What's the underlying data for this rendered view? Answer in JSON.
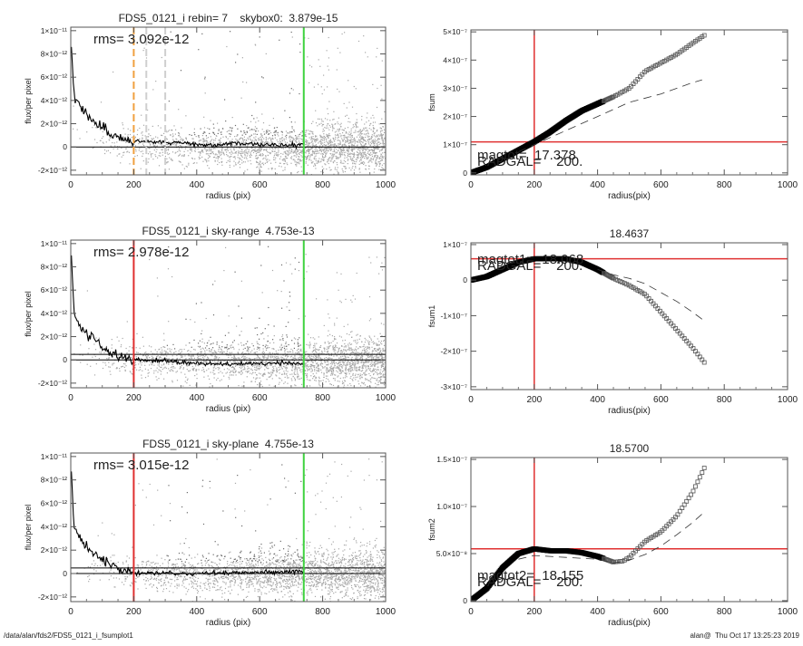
{
  "footer": {
    "path": "/data/alan/fds2/FDS5_0121_i_fsumplot1",
    "stamp": "alan@  Thu Oct 17 13:25:23 2019"
  },
  "colors": {
    "scatter_light": "#a8a8a8",
    "scatter_dark": "#6a6a6a",
    "profile": "#000000",
    "green": "#3fd23f",
    "red": "#e03030",
    "orange": "#f0a040"
  },
  "chart_data": [
    {
      "type": "scatter",
      "title": "FDS5_0121_i rebin= 7    skybox0:  3.879e-15",
      "annotation": "rms= 3.092e-12",
      "xlabel": "radius (pix)",
      "ylabel": "flux/per pixel",
      "xlim": [
        0,
        1000
      ],
      "ylim": [
        -2.4e-12,
        1.03e-11
      ],
      "xticks": [
        "0",
        "200",
        "400",
        "600",
        "800",
        "1000"
      ],
      "yticks": [
        {
          "v": -2e-12,
          "label": "-2×10⁻¹²"
        },
        {
          "v": 0,
          "label": "0"
        },
        {
          "v": 2e-12,
          "label": "2×10⁻¹²"
        },
        {
          "v": 4e-12,
          "label": "4×10⁻¹²"
        },
        {
          "v": 6e-12,
          "label": "6×10⁻¹²"
        },
        {
          "v": 8e-12,
          "label": "8×10⁻¹²"
        },
        {
          "v": 1e-11,
          "label": "1×10⁻¹¹"
        }
      ],
      "profile": {
        "x": [
          0,
          10,
          30,
          60,
          100,
          150,
          200,
          250,
          300,
          400,
          450,
          500,
          600,
          700,
          740
        ],
        "y": [
          1e-11,
          4.5e-12,
          3.5e-12,
          2.4e-12,
          1.6e-12,
          9e-13,
          5e-13,
          4.5e-13,
          4.5e-13,
          2.5e-13,
          1e-13,
          3e-13,
          2e-13,
          1.5e-13,
          1.5e-13
        ]
      },
      "hlines": [
        0
      ],
      "vlines": [
        {
          "x": 200,
          "color": "orange",
          "style": "dashed"
        },
        {
          "x": 240,
          "color": "lightgray",
          "style": "dashed"
        },
        {
          "x": 300,
          "color": "lightgray",
          "style": "dashed"
        },
        {
          "x": 740,
          "color": "green",
          "style": "solid"
        }
      ]
    },
    {
      "type": "line",
      "title": "",
      "xlabel": "radius(pix)",
      "ylabel": "fsum",
      "xlim": [
        0,
        1000
      ],
      "ylim": [
        -7e-09,
        5.07e-07
      ],
      "xticks": [
        "0",
        "200",
        "400",
        "600",
        "800",
        "1000"
      ],
      "yticks": [
        {
          "v": 0,
          "label": "0"
        },
        {
          "v": 1e-07,
          "label": "1×10⁻⁷"
        },
        {
          "v": 2e-07,
          "label": "2×10⁻⁷"
        },
        {
          "v": 3e-07,
          "label": "3×10⁻⁷"
        },
        {
          "v": 4e-07,
          "label": "4×10⁻⁷"
        },
        {
          "v": 5e-07,
          "label": "5×10⁻⁷"
        }
      ],
      "series": [
        {
          "style": "squares",
          "x": [
            0,
            50,
            100,
            150,
            200,
            250,
            300,
            350,
            400,
            450,
            500,
            550,
            600,
            650,
            700,
            740
          ],
          "y": [
            0,
            2e-08,
            5e-08,
            8e-08,
            1.1e-07,
            1.45e-07,
            1.85e-07,
            2.2e-07,
            2.45e-07,
            2.7e-07,
            3e-07,
            3.6e-07,
            3.9e-07,
            4.2e-07,
            4.6e-07,
            4.9e-07
          ]
        },
        {
          "style": "dashed",
          "x": [
            150,
            200,
            300,
            400,
            500,
            600,
            700,
            730
          ],
          "y": [
            7.5e-08,
            1e-07,
            1.5e-07,
            2e-07,
            2.5e-07,
            2.8e-07,
            3.2e-07,
            3.3e-07
          ]
        }
      ],
      "vline": 200,
      "hline": 1.1e-07,
      "annotations": [
        "magtot=  17.378",
        "RADGAL=    200."
      ]
    },
    {
      "type": "scatter",
      "title": "FDS5_0121_i sky-range  4.753e-13",
      "annotation": "rms= 2.978e-12",
      "xlabel": "radius (pix)",
      "ylabel": "flux/per pixel",
      "xlim": [
        0,
        1000
      ],
      "ylim": [
        -2.4e-12,
        1.03e-11
      ],
      "xticks": [
        "0",
        "200",
        "400",
        "600",
        "800",
        "1000"
      ],
      "yticks": [
        {
          "v": -2e-12,
          "label": "-2×10⁻¹²"
        },
        {
          "v": 0,
          "label": "0"
        },
        {
          "v": 2e-12,
          "label": "2×10⁻¹²"
        },
        {
          "v": 4e-12,
          "label": "4×10⁻¹²"
        },
        {
          "v": 6e-12,
          "label": "6×10⁻¹²"
        },
        {
          "v": 8e-12,
          "label": "8×10⁻¹²"
        },
        {
          "v": 1e-11,
          "label": "1×10⁻¹¹"
        }
      ],
      "profile": {
        "x": [
          0,
          10,
          30,
          60,
          100,
          150,
          200,
          250,
          300,
          400,
          500,
          600,
          700,
          740
        ],
        "y": [
          1e-11,
          4e-12,
          3e-12,
          2e-12,
          1.1e-12,
          4e-13,
          0,
          -5e-14,
          -1e-13,
          -3e-13,
          -3.5e-13,
          -3e-13,
          -3e-13,
          -3e-13
        ]
      },
      "hlines": [
        0,
        4.75e-13
      ],
      "vlines": [
        {
          "x": 200,
          "color": "red",
          "style": "solid"
        },
        {
          "x": 740,
          "color": "green",
          "style": "solid"
        }
      ]
    },
    {
      "type": "line",
      "title": "18.4637",
      "xlabel": "radius(pix)",
      "ylabel": "fsum1",
      "xlim": [
        0,
        1000
      ],
      "ylim": [
        -3.08e-07,
        1.05e-07
      ],
      "xticks": [
        "0",
        "200",
        "400",
        "600",
        "800",
        "1000"
      ],
      "yticks": [
        {
          "v": -3e-07,
          "label": "-3×10⁻⁷"
        },
        {
          "v": -2e-07,
          "label": "-2×10⁻⁷"
        },
        {
          "v": -1e-07,
          "label": "-1×10⁻⁷"
        },
        {
          "v": 0,
          "label": "0"
        },
        {
          "v": 1e-07,
          "label": "1×10⁻⁷"
        }
      ],
      "series": [
        {
          "style": "squares",
          "x": [
            0,
            50,
            100,
            150,
            200,
            250,
            300,
            350,
            400,
            450,
            500,
            550,
            600,
            650,
            700,
            740
          ],
          "y": [
            0,
            1e-08,
            3e-08,
            5e-08,
            6e-08,
            6e-08,
            6e-08,
            5e-08,
            3e-08,
            5e-09,
            -1.5e-08,
            -4e-08,
            -9e-08,
            -1.4e-07,
            -1.9e-07,
            -2.35e-07
          ]
        },
        {
          "style": "dashed",
          "x": [
            400,
            450,
            500,
            550,
            600,
            650,
            700,
            730
          ],
          "y": [
            3e-08,
            1.5e-08,
            5e-09,
            -1e-08,
            -3.5e-08,
            -6e-08,
            -9e-08,
            -1.1e-07
          ]
        }
      ],
      "vline": 200,
      "hline": 6e-08,
      "annotations": [
        "magtot1=  18.068",
        "RADGAL=    200."
      ]
    },
    {
      "type": "scatter",
      "title": "FDS5_0121_i sky-plane  4.755e-13",
      "annotation": "rms= 3.015e-12",
      "xlabel": "radius (pix)",
      "ylabel": "flux/per pixel",
      "xlim": [
        0,
        1000
      ],
      "ylim": [
        -2.4e-12,
        1.03e-11
      ],
      "xticks": [
        "0",
        "200",
        "400",
        "600",
        "800",
        "1000"
      ],
      "yticks": [
        {
          "v": -2e-12,
          "label": "-2×10⁻¹²"
        },
        {
          "v": 0,
          "label": "0"
        },
        {
          "v": 2e-12,
          "label": "2×10⁻¹²"
        },
        {
          "v": 4e-12,
          "label": "4×10⁻¹²"
        },
        {
          "v": 6e-12,
          "label": "6×10⁻¹²"
        },
        {
          "v": 8e-12,
          "label": "8×10⁻¹²"
        },
        {
          "v": 1e-11,
          "label": "1×10⁻¹¹"
        }
      ],
      "profile": {
        "x": [
          0,
          10,
          30,
          60,
          100,
          150,
          200,
          250,
          300,
          400,
          500,
          600,
          700,
          740
        ],
        "y": [
          1e-11,
          4e-12,
          3e-12,
          2e-12,
          1.1e-12,
          4e-13,
          5e-14,
          0,
          5e-14,
          0,
          5e-14,
          1e-13,
          1.5e-13,
          2e-13
        ]
      },
      "hlines": [
        0,
        4.75e-13
      ],
      "vlines": [
        {
          "x": 200,
          "color": "red",
          "style": "solid"
        },
        {
          "x": 740,
          "color": "green",
          "style": "solid"
        }
      ]
    },
    {
      "type": "line",
      "title": "18.5700",
      "xlabel": "radius(pix)",
      "ylabel": "fsum2",
      "xlim": [
        0,
        1000
      ],
      "ylim": [
        -1e-09,
        1.52e-07
      ],
      "xticks": [
        "0",
        "200",
        "400",
        "600",
        "800",
        "1000"
      ],
      "yticks": [
        {
          "v": 0,
          "label": "0"
        },
        {
          "v": 5e-08,
          "label": "5.0×10⁻⁸"
        },
        {
          "v": 1e-07,
          "label": "1.0×10⁻⁷"
        },
        {
          "v": 1.5e-07,
          "label": "1.5×10⁻⁷"
        }
      ],
      "series": [
        {
          "style": "squares",
          "x": [
            0,
            50,
            100,
            150,
            200,
            250,
            300,
            350,
            400,
            450,
            480,
            500,
            550,
            600,
            650,
            700,
            740
          ],
          "y": [
            0,
            1.3e-08,
            3.5e-08,
            5e-08,
            5.5e-08,
            5.3e-08,
            5.3e-08,
            5.1e-08,
            4.7e-08,
            4.1e-08,
            4.2e-08,
            4.6e-08,
            6.3e-08,
            7.3e-08,
            9e-08,
            1.15e-07,
            1.43e-07
          ]
        },
        {
          "style": "dashed",
          "x": [
            150,
            200,
            300,
            400,
            450,
            500,
            550,
            600,
            650,
            700,
            740
          ],
          "y": [
            4.4e-08,
            4.8e-08,
            4.6e-08,
            4.4e-08,
            4e-08,
            4.3e-08,
            4.9e-08,
            5.8e-08,
            7e-08,
            8.3e-08,
            9.5e-08
          ]
        }
      ],
      "vline": 200,
      "hline": 5.5e-08,
      "annotations": [
        "magtot2=  18.155",
        "RADGAL=    200."
      ]
    }
  ]
}
